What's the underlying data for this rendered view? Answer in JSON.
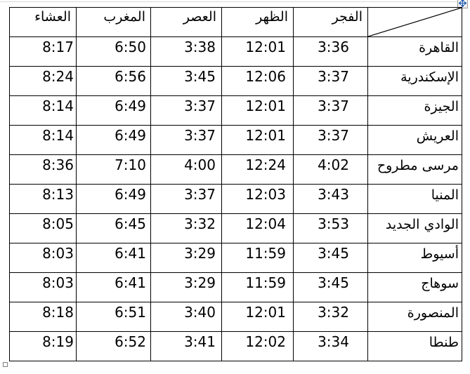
{
  "table": {
    "column_keys": [
      "fajr",
      "dhuhr",
      "asr",
      "maghrib",
      "isha"
    ],
    "headers": [
      "الفجر",
      "الظهر",
      "العصر",
      "المغرب",
      "العشاء"
    ],
    "corner_label": "",
    "rows": [
      {
        "city": "القاهرة",
        "times": [
          "3:36",
          "12:01",
          "3:38",
          "6:50",
          "8:17"
        ]
      },
      {
        "city": "الإسكندرية",
        "times": [
          "3:37",
          "12:06",
          "3:45",
          "6:56",
          "8:24"
        ]
      },
      {
        "city": "الجيزة",
        "times": [
          "3:37",
          "12:01",
          "3:37",
          "6:49",
          "8:14"
        ]
      },
      {
        "city": "العريش",
        "times": [
          "3:37",
          "12:01",
          "3:37",
          "6:49",
          "8:14"
        ]
      },
      {
        "city": "مرسى مطروح",
        "times": [
          "4:02",
          "12:24",
          "4:00",
          "7:10",
          "8:36"
        ]
      },
      {
        "city": "المنيا",
        "times": [
          "3:43",
          "12:03",
          "3:37",
          "6:49",
          "8:13"
        ]
      },
      {
        "city": "الوادي الجديد",
        "times": [
          "3:53",
          "12:04",
          "3:32",
          "6:45",
          "8:05"
        ]
      },
      {
        "city": "أسيوط",
        "times": [
          "3:45",
          "11:59",
          "3:29",
          "6:41",
          "8:03"
        ]
      },
      {
        "city": "سوهاج",
        "times": [
          "3:45",
          "11:59",
          "3:29",
          "6:41",
          "8:03"
        ]
      },
      {
        "city": "المنصورة",
        "times": [
          "3:32",
          "12:01",
          "3:40",
          "6:51",
          "8:18"
        ]
      },
      {
        "city": "طنطا",
        "times": [
          "3:34",
          "12:02",
          "3:41",
          "6:52",
          "8:19"
        ]
      }
    ]
  },
  "icons": {
    "move_handle": "four-direction-move-arrow",
    "resize_handle": "resize-square",
    "corner": "diagonal-split-line"
  },
  "colors": {
    "border": "#000000",
    "text": "#000000",
    "move_arrow": "#2e63b8",
    "handle_border": "#9b9b9b",
    "boundary_line": "#d9d9d9"
  }
}
